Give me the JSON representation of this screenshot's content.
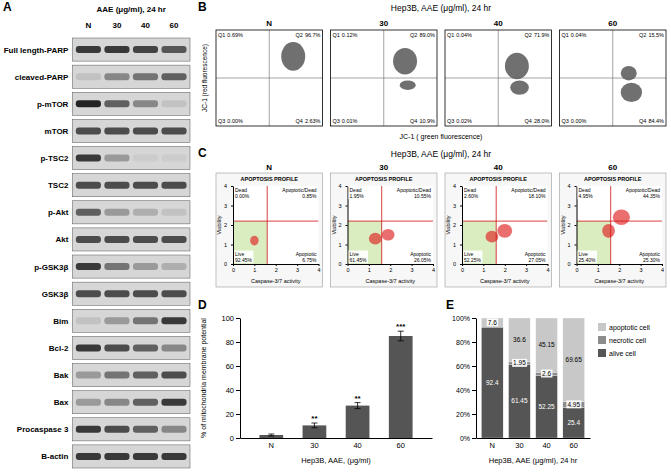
{
  "panel_letters": [
    "A",
    "B",
    "C",
    "D",
    "E"
  ],
  "blot": {
    "title": "AAE (μg/ml), 24 hr",
    "lanes": [
      "N",
      "30",
      "40",
      "60"
    ],
    "rows": [
      {
        "label": "Full length-PARP",
        "intensity": [
          0.8,
          0.8,
          0.75,
          0.65
        ]
      },
      {
        "label": "cleaved-PARP",
        "intensity": [
          0.1,
          0.4,
          0.5,
          0.6
        ]
      },
      {
        "label": "p-mTOR",
        "intensity": [
          0.9,
          0.6,
          0.4,
          0.1
        ]
      },
      {
        "label": "mTOR",
        "intensity": [
          0.7,
          0.7,
          0.7,
          0.7
        ]
      },
      {
        "label": "p-TSC2",
        "intensity": [
          0.8,
          0.3,
          0.05,
          0.05
        ]
      },
      {
        "label": "TSC2",
        "intensity": [
          0.7,
          0.7,
          0.7,
          0.7
        ]
      },
      {
        "label": "p-Akt",
        "intensity": [
          0.6,
          0.3,
          0.2,
          0.1
        ]
      },
      {
        "label": "Akt",
        "intensity": [
          0.7,
          0.7,
          0.7,
          0.7
        ]
      },
      {
        "label": "p-GSK3β",
        "intensity": [
          0.8,
          0.5,
          0.3,
          0.2
        ]
      },
      {
        "label": "GSK3β",
        "intensity": [
          0.7,
          0.7,
          0.7,
          0.7
        ]
      },
      {
        "label": "Bim",
        "intensity": [
          0.1,
          0.3,
          0.5,
          0.8
        ]
      },
      {
        "label": "Bcl-2",
        "intensity": [
          0.8,
          0.7,
          0.6,
          0.4
        ]
      },
      {
        "label": "Bak",
        "intensity": [
          0.3,
          0.5,
          0.6,
          0.7
        ]
      },
      {
        "label": "Bax",
        "intensity": [
          0.3,
          0.4,
          0.6,
          0.8
        ]
      },
      {
        "label": "Procaspase 3",
        "intensity": [
          0.8,
          0.7,
          0.6,
          0.4
        ]
      },
      {
        "label": "B-actin",
        "intensity": [
          0.8,
          0.8,
          0.8,
          0.8
        ]
      }
    ]
  },
  "flow_jc1": {
    "title": "Hep3B, AAE (μg/ml), 24 hr",
    "x_label": "JC-1 ( green fluorescence)",
    "y_label": "JC-1 (red fluorescence)",
    "xlim": [
      0,
      4
    ],
    "ylim": [
      0,
      4
    ],
    "tick_labels": false,
    "gates": {
      "x": 2,
      "y": 2
    },
    "quadrant_names": [
      "Q1",
      "Q2",
      "Q3",
      "Q4"
    ],
    "panels": [
      {
        "label": "N",
        "quadrants": [
          "0.69%",
          "96.7%",
          "0.00%",
          "2.63%"
        ],
        "populations": [
          {
            "x": 2.9,
            "y": 2.9,
            "sx": 0.45,
            "sy": 0.6
          }
        ]
      },
      {
        "label": "30",
        "quadrants": [
          "0.12%",
          "89.0%",
          "0.01%",
          "10.9%"
        ],
        "populations": [
          {
            "x": 2.8,
            "y": 2.7,
            "sx": 0.45,
            "sy": 0.55
          },
          {
            "x": 2.9,
            "y": 1.7,
            "sx": 0.3,
            "sy": 0.2
          }
        ]
      },
      {
        "label": "40",
        "quadrants": [
          "0.04%",
          "71.9%",
          "0.02%",
          "28.0%"
        ],
        "populations": [
          {
            "x": 2.7,
            "y": 2.5,
            "sx": 0.45,
            "sy": 0.55
          },
          {
            "x": 2.8,
            "y": 1.6,
            "sx": 0.35,
            "sy": 0.3
          }
        ]
      },
      {
        "label": "60",
        "quadrants": [
          "0.04%",
          "15.5%",
          "0.00%",
          "84.4%"
        ],
        "populations": [
          {
            "x": 2.6,
            "y": 2.2,
            "sx": 0.3,
            "sy": 0.3
          },
          {
            "x": 2.7,
            "y": 1.4,
            "sx": 0.4,
            "sy": 0.4
          }
        ]
      }
    ]
  },
  "caspase": {
    "title": "Hep3B, AAE (μg/ml), 24 hr",
    "plot_title": "APOPTOSIS PROFILE",
    "x_label": "Caspase-3/7 activity",
    "y_label": "Viability",
    "xlim": [
      0,
      4
    ],
    "ylim": [
      0,
      4
    ],
    "xticks": [
      0,
      1,
      2,
      3,
      4
    ],
    "yticks": [
      0,
      1,
      2,
      3,
      4
    ],
    "gates": {
      "x": 1.6,
      "y": 2.2
    },
    "quadrant_names": [
      "Dead",
      "Apoptotic/Dead",
      "Live",
      "Apoptotic"
    ],
    "panels": [
      {
        "label": "N",
        "quadrants": [
          "0.00%",
          "0.85%",
          "92.45%",
          "6.75%"
        ],
        "populations": [
          {
            "x": 1.0,
            "y": 1.2,
            "sx": 0.2,
            "sy": 0.25
          }
        ]
      },
      {
        "label": "30",
        "quadrants": [
          "1.95%",
          "10.55%",
          "61.45%",
          "26.05%"
        ],
        "populations": [
          {
            "x": 1.3,
            "y": 1.3,
            "sx": 0.3,
            "sy": 0.3
          },
          {
            "x": 1.9,
            "y": 1.5,
            "sx": 0.3,
            "sy": 0.3
          }
        ]
      },
      {
        "label": "40",
        "quadrants": [
          "2.60%",
          "18.10%",
          "52.25%",
          "27.05%"
        ],
        "populations": [
          {
            "x": 1.4,
            "y": 1.4,
            "sx": 0.3,
            "sy": 0.3
          },
          {
            "x": 2.0,
            "y": 1.7,
            "sx": 0.35,
            "sy": 0.35
          }
        ]
      },
      {
        "label": "60",
        "quadrants": [
          "4.95%",
          "44.35%",
          "25.40%",
          "25.30%"
        ],
        "populations": [
          {
            "x": 1.5,
            "y": 1.7,
            "sx": 0.3,
            "sy": 0.35
          },
          {
            "x": 2.1,
            "y": 2.4,
            "sx": 0.4,
            "sy": 0.4
          }
        ]
      }
    ]
  },
  "chart_data": [
    {
      "type": "bar",
      "categories": [
        "N",
        "30",
        "40",
        "60"
      ],
      "values": [
        2.5,
        10.5,
        27,
        85
      ],
      "errors": [
        0.8,
        2,
        2.5,
        4
      ],
      "significance": [
        null,
        "**",
        "**",
        "***"
      ],
      "color": "#555555",
      "ylim": [
        0,
        100
      ],
      "yticks": [
        0,
        20,
        40,
        60,
        80,
        100
      ],
      "y_label": "% of mitochondria membrane potential",
      "x_label": "Hep3B, AAE, (μg/ml)",
      "grid": false
    },
    {
      "type": "bar",
      "stacked": true,
      "categories": [
        "N",
        "30",
        "40",
        "60"
      ],
      "series": [
        {
          "name": "alive cell",
          "color": "#555555",
          "values": [
            92.4,
            61.45,
            52.25,
            25.4
          ]
        },
        {
          "name": "necrotic cell",
          "color": "#8c8c8c",
          "values": [
            null,
            1.95,
            2.6,
            4.95
          ]
        },
        {
          "name": "apoptotic cell",
          "color": "#c8c8c8",
          "values": [
            7.6,
            36.6,
            45.15,
            69.65
          ]
        }
      ],
      "ylim": [
        0,
        100
      ],
      "yticks": [
        {
          "value": 0,
          "label": "0%"
        },
        {
          "value": 20,
          "label": "20%"
        },
        {
          "value": 40,
          "label": "40%"
        },
        {
          "value": 60,
          "label": "60%"
        },
        {
          "value": 80,
          "label": "80%"
        },
        {
          "value": 100,
          "label": "100%"
        }
      ],
      "x_label": "Hep3B, AAE (μg/ml), 24 hr",
      "legend": "right",
      "data_labels": true,
      "grid": false
    }
  ]
}
